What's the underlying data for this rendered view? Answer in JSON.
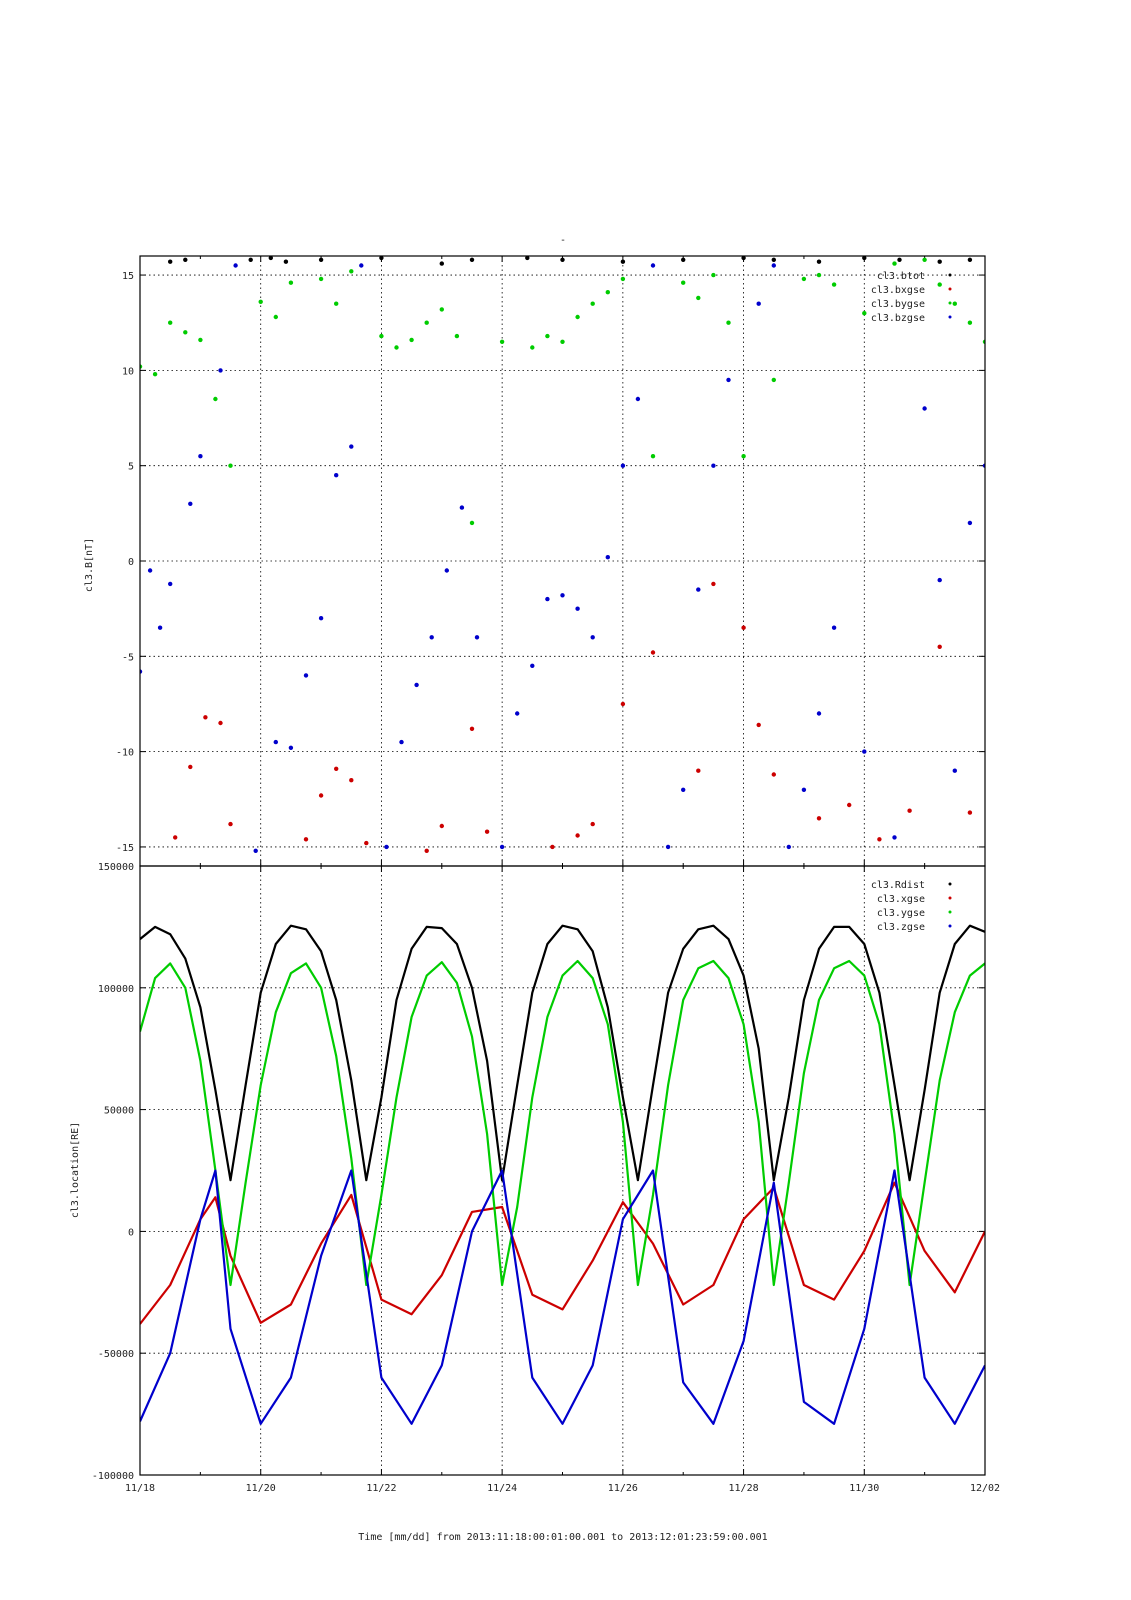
{
  "chart_data": [
    {
      "type": "scatter",
      "title": "-",
      "ylabel": "cl3.B[nT]",
      "xlabel": "",
      "xlim": [
        "2013-11-18",
        "2013-12-02"
      ],
      "ylim": [
        -16,
        16
      ],
      "yticks": [
        -15,
        -10,
        -5,
        0,
        5,
        10,
        15
      ],
      "grid": true,
      "legend_placement": "top-right",
      "series": [
        {
          "name": "cl3.btot",
          "color": "#000000",
          "x": [
            "11/18 12:00",
            "11/18 18:00",
            "11/19 20:00",
            "11/20 04:00",
            "11/20 10:00",
            "11/21 00:00",
            "11/22 00:00",
            "11/23 00:00",
            "11/23 12:00",
            "11/24 10:00",
            "11/25 00:00",
            "11/26 00:00",
            "11/27 00:00",
            "11/28 00:00",
            "11/28 12:00",
            "11/29 06:00",
            "11/30 00:00",
            "11/30 14:00",
            "12/01 06:00",
            "12/01 18:00"
          ],
          "y": [
            15.7,
            15.8,
            15.8,
            15.9,
            15.7,
            15.8,
            15.9,
            15.6,
            15.8,
            15.9,
            15.8,
            15.7,
            15.8,
            15.9,
            15.8,
            15.7,
            15.9,
            15.8,
            15.7,
            15.8
          ]
        },
        {
          "name": "cl3.bxgse",
          "color": "#cc0000",
          "x": [
            "11/18 14:00",
            "11/18 20:00",
            "11/19 02:00",
            "11/19 08:00",
            "11/19 12:00",
            "11/20 18:00",
            "11/21 00:00",
            "11/21 06:00",
            "11/21 12:00",
            "11/21 18:00",
            "11/22 18:00",
            "11/23 00:00",
            "11/23 12:00",
            "11/23 18:00",
            "11/24 20:00",
            "11/25 06:00",
            "11/25 12:00",
            "11/26 00:00",
            "11/26 12:00",
            "11/27 06:00",
            "11/27 12:00",
            "11/28 00:00",
            "11/28 06:00",
            "11/28 12:00",
            "11/29 06:00",
            "11/29 18:00",
            "11/30 06:00",
            "11/30 18:00",
            "12/01 06:00",
            "12/01 18:00"
          ],
          "y": [
            -14.5,
            -10.8,
            -8.2,
            -8.5,
            -13.8,
            -14.6,
            -12.3,
            -10.9,
            -11.5,
            -14.8,
            -15.2,
            -13.9,
            -8.8,
            -14.2,
            -15.0,
            -14.4,
            -13.8,
            -7.5,
            -4.8,
            -11.0,
            -1.2,
            -3.5,
            -8.6,
            -11.2,
            -13.5,
            -12.8,
            -14.6,
            -13.1,
            -4.5,
            -13.2
          ]
        },
        {
          "name": "cl3.bygse",
          "color": "#00cc00",
          "x": [
            "11/18 00:00",
            "11/18 06:00",
            "11/18 12:00",
            "11/18 18:00",
            "11/19 00:00",
            "11/19 06:00",
            "11/19 12:00",
            "11/20 00:00",
            "11/20 06:00",
            "11/20 12:00",
            "11/21 00:00",
            "11/21 06:00",
            "11/21 12:00",
            "11/22 00:00",
            "11/22 06:00",
            "11/22 12:00",
            "11/22 18:00",
            "11/23 00:00",
            "11/23 06:00",
            "11/23 12:00",
            "11/24 00:00",
            "11/24 12:00",
            "11/24 18:00",
            "11/25 00:00",
            "11/25 06:00",
            "11/25 12:00",
            "11/25 18:00",
            "11/26 00:00",
            "11/26 12:00",
            "11/27 00:00",
            "11/27 06:00",
            "11/27 12:00",
            "11/27 18:00",
            "11/28 00:00",
            "11/28 12:00",
            "11/29 00:00",
            "11/29 06:00",
            "11/29 12:00",
            "11/30 00:00",
            "11/30 12:00",
            "12/01 00:00",
            "12/01 06:00",
            "12/01 12:00",
            "12/01 18:00",
            "12/02 00:00"
          ],
          "y": [
            10.2,
            9.8,
            12.5,
            12.0,
            11.6,
            8.5,
            5.0,
            13.6,
            12.8,
            14.6,
            14.8,
            13.5,
            15.2,
            11.8,
            11.2,
            11.6,
            12.5,
            13.2,
            11.8,
            2.0,
            11.5,
            11.2,
            11.8,
            11.5,
            12.8,
            13.5,
            14.1,
            14.8,
            5.5,
            14.6,
            13.8,
            15.0,
            12.5,
            5.5,
            9.5,
            14.8,
            15.0,
            14.5,
            13.0,
            15.6,
            15.8,
            14.5,
            13.5,
            12.5,
            11.5
          ]
        },
        {
          "name": "cl3.bzgse",
          "color": "#0000cc",
          "x": [
            "11/18 00:00",
            "11/18 04:00",
            "11/18 08:00",
            "11/18 12:00",
            "11/18 20:00",
            "11/19 00:00",
            "11/19 08:00",
            "11/19 14:00",
            "11/19 22:00",
            "11/20 06:00",
            "11/20 12:00",
            "11/20 18:00",
            "11/21 00:00",
            "11/21 06:00",
            "11/21 12:00",
            "11/21 16:00",
            "11/22 02:00",
            "11/22 08:00",
            "11/22 14:00",
            "11/22 20:00",
            "11/23 02:00",
            "11/23 08:00",
            "11/23 14:00",
            "11/24 00:00",
            "11/24 06:00",
            "11/24 12:00",
            "11/24 18:00",
            "11/25 00:00",
            "11/25 06:00",
            "11/25 12:00",
            "11/25 18:00",
            "11/26 00:00",
            "11/26 06:00",
            "11/26 12:00",
            "11/26 18:00",
            "11/27 00:00",
            "11/27 06:00",
            "11/27 12:00",
            "11/27 18:00",
            "11/28 06:00",
            "11/28 12:00",
            "11/28 18:00",
            "11/29 00:00",
            "11/29 06:00",
            "11/29 12:00",
            "11/30 00:00",
            "11/30 12:00",
            "12/01 00:00",
            "12/01 06:00",
            "12/01 12:00",
            "12/01 18:00",
            "12/02 00:00"
          ],
          "y": [
            -5.8,
            -0.5,
            -3.5,
            -1.2,
            3.0,
            5.5,
            10.0,
            15.5,
            -15.2,
            -9.5,
            -9.8,
            -6.0,
            -3.0,
            4.5,
            6.0,
            15.5,
            -15.0,
            -9.5,
            -6.5,
            -4.0,
            -0.5,
            2.8,
            -4.0,
            -15.0,
            -8.0,
            -5.5,
            -2.0,
            -1.8,
            -2.5,
            -4.0,
            0.2,
            5.0,
            8.5,
            15.5,
            -15.0,
            -12.0,
            -1.5,
            5.0,
            9.5,
            13.5,
            15.5,
            -15.0,
            -12.0,
            -8.0,
            -3.5,
            -10.0,
            -14.5,
            8.0,
            -1.0,
            -11.0,
            2.0,
            5.0
          ]
        }
      ]
    },
    {
      "type": "line",
      "title": "",
      "ylabel": "cl3.location[RE]",
      "xlabel": "Time [mm/dd]  from 2013:11:18:00:01:00.001  to  2013:12:01:23:59:00.001",
      "xlim": [
        "2013-11-18",
        "2013-12-02"
      ],
      "ylim": [
        -100000,
        150000
      ],
      "yticks": [
        -100000,
        -50000,
        0,
        50000,
        100000,
        150000
      ],
      "xticks": [
        "11/18",
        "11/20",
        "11/22",
        "11/24",
        "11/26",
        "11/28",
        "11/30",
        "12/02"
      ],
      "grid": true,
      "legend_placement": "top-right",
      "series": [
        {
          "name": "cl3.Rdist",
          "color": "#000000",
          "x": [
            "11/18 00:00",
            "11/18 06:00",
            "11/18 12:00",
            "11/18 18:00",
            "11/19 00:00",
            "11/19 06:00",
            "11/19 12:00",
            "11/19 18:00",
            "11/20 00:00",
            "11/20 06:00",
            "11/20 12:00",
            "11/20 18:00",
            "11/21 00:00",
            "11/21 06:00",
            "11/21 12:00",
            "11/21 18:00",
            "11/22 00:00",
            "11/22 06:00",
            "11/22 12:00",
            "11/22 18:00",
            "11/23 00:00",
            "11/23 06:00",
            "11/23 12:00",
            "11/23 18:00",
            "11/24 00:00",
            "11/24 06:00",
            "11/24 12:00",
            "11/24 18:00",
            "11/25 00:00",
            "11/25 06:00",
            "11/25 12:00",
            "11/25 18:00",
            "11/26 00:00",
            "11/26 06:00",
            "11/26 12:00",
            "11/26 18:00",
            "11/27 00:00",
            "11/27 06:00",
            "11/27 12:00",
            "11/27 18:00",
            "11/28 00:00",
            "11/28 06:00",
            "11/28 12:00",
            "11/28 18:00",
            "11/29 00:00",
            "11/29 06:00",
            "11/29 12:00",
            "11/29 18:00",
            "11/30 00:00",
            "11/30 06:00",
            "11/30 12:00",
            "11/30 18:00",
            "12/01 00:00",
            "12/01 06:00",
            "12/01 12:00",
            "12/01 18:00",
            "12/02 00:00"
          ],
          "y": [
            120000,
            125000,
            122000,
            112000,
            92000,
            58000,
            21000,
            60000,
            98000,
            118000,
            125500,
            124000,
            115000,
            95000,
            62000,
            21000,
            55000,
            95000,
            116000,
            125000,
            124500,
            118000,
            100000,
            70000,
            21000,
            60000,
            98000,
            118000,
            125500,
            124000,
            115000,
            92000,
            55000,
            21000,
            60000,
            98000,
            116000,
            124000,
            125500,
            120000,
            105000,
            75000,
            21000,
            55000,
            95000,
            116000,
            125000,
            125000,
            118000,
            98000,
            60000,
            21000,
            58000,
            98000,
            118000,
            125500,
            123000
          ]
        },
        {
          "name": "cl3.xgse",
          "color": "#cc0000",
          "x": [
            "11/18 00:00",
            "11/18 12:00",
            "11/19 00:00",
            "11/19 06:00",
            "11/19 12:00",
            "11/20 00:00",
            "11/20 12:00",
            "11/21 00:00",
            "11/21 12:00",
            "11/22 00:00",
            "11/22 12:00",
            "11/23 00:00",
            "11/23 12:00",
            "11/24 00:00",
            "11/24 12:00",
            "11/25 00:00",
            "11/25 12:00",
            "11/26 00:00",
            "11/26 12:00",
            "11/27 00:00",
            "11/27 12:00",
            "11/28 00:00",
            "11/28 12:00",
            "11/29 00:00",
            "11/29 12:00",
            "11/30 00:00",
            "11/30 12:00",
            "12/01 00:00",
            "12/01 12:00",
            "12/02 00:00"
          ],
          "y": [
            -38000,
            -22000,
            5000,
            14000,
            -10000,
            -37500,
            -30000,
            -5000,
            15000,
            -28000,
            -34000,
            -18000,
            8000,
            10000,
            -26000,
            -32000,
            -12000,
            12000,
            -5000,
            -30000,
            -22000,
            5000,
            18000,
            -22000,
            -28000,
            -8000,
            20000,
            -8000,
            -25000,
            0
          ]
        },
        {
          "name": "cl3.ygse",
          "color": "#00cc00",
          "x": [
            "11/18 00:00",
            "11/18 06:00",
            "11/18 12:00",
            "11/18 18:00",
            "11/19 00:00",
            "11/19 06:00",
            "11/19 12:00",
            "11/19 18:00",
            "11/20 00:00",
            "11/20 06:00",
            "11/20 12:00",
            "11/20 18:00",
            "11/21 00:00",
            "11/21 06:00",
            "11/21 12:00",
            "11/21 18:00",
            "11/22 00:00",
            "11/22 06:00",
            "11/22 12:00",
            "11/22 18:00",
            "11/23 00:00",
            "11/23 06:00",
            "11/23 12:00",
            "11/23 18:00",
            "11/24 00:00",
            "11/24 06:00",
            "11/24 12:00",
            "11/24 18:00",
            "11/25 00:00",
            "11/25 06:00",
            "11/25 12:00",
            "11/25 18:00",
            "11/26 00:00",
            "11/26 06:00",
            "11/26 12:00",
            "11/26 18:00",
            "11/27 00:00",
            "11/27 06:00",
            "11/27 12:00",
            "11/27 18:00",
            "11/28 00:00",
            "11/28 06:00",
            "11/28 12:00",
            "11/28 18:00",
            "11/29 00:00",
            "11/29 06:00",
            "11/29 12:00",
            "11/29 18:00",
            "11/30 00:00",
            "11/30 06:00",
            "11/30 12:00",
            "11/30 18:00",
            "12/01 00:00",
            "12/01 06:00",
            "12/01 12:00",
            "12/01 18:00",
            "12/02 00:00"
          ],
          "y": [
            82000,
            104000,
            110000,
            100000,
            70000,
            25000,
            -22000,
            20000,
            60000,
            90000,
            106000,
            110000,
            100000,
            72000,
            30000,
            -22000,
            15000,
            55000,
            88000,
            105000,
            110500,
            102000,
            80000,
            40000,
            -22000,
            10000,
            55000,
            88000,
            105000,
            111000,
            104000,
            85000,
            45000,
            -22000,
            15000,
            60000,
            95000,
            108000,
            111000,
            104000,
            85000,
            45000,
            -22000,
            20000,
            65000,
            95000,
            108000,
            111000,
            105000,
            85000,
            40000,
            -22000,
            20000,
            62000,
            90000,
            105000,
            110000
          ]
        },
        {
          "name": "cl3.zgse",
          "color": "#0000cc",
          "x": [
            "11/18 00:00",
            "11/18 12:00",
            "11/19 00:00",
            "11/19 06:00",
            "11/19 12:00",
            "11/20 00:00",
            "11/20 12:00",
            "11/21 00:00",
            "11/21 12:00",
            "11/22 00:00",
            "11/22 12:00",
            "11/23 00:00",
            "11/23 12:00",
            "11/24 00:00",
            "11/24 12:00",
            "11/25 00:00",
            "11/25 12:00",
            "11/26 00:00",
            "11/26 12:00",
            "11/27 00:00",
            "11/27 12:00",
            "11/28 00:00",
            "11/28 12:00",
            "11/29 00:00",
            "11/29 12:00",
            "11/30 00:00",
            "11/30 12:00",
            "12/01 00:00",
            "12/01 12:00",
            "12/02 00:00"
          ],
          "y": [
            -78000,
            -50000,
            5000,
            25000,
            -40000,
            -79000,
            -60000,
            -10000,
            25000,
            -60000,
            -79000,
            -55000,
            0,
            25000,
            -60000,
            -79000,
            -55000,
            5000,
            25000,
            -62000,
            -79000,
            -45000,
            20000,
            -70000,
            -79000,
            -40000,
            25000,
            -60000,
            -79000,
            -55000
          ]
        }
      ]
    }
  ]
}
